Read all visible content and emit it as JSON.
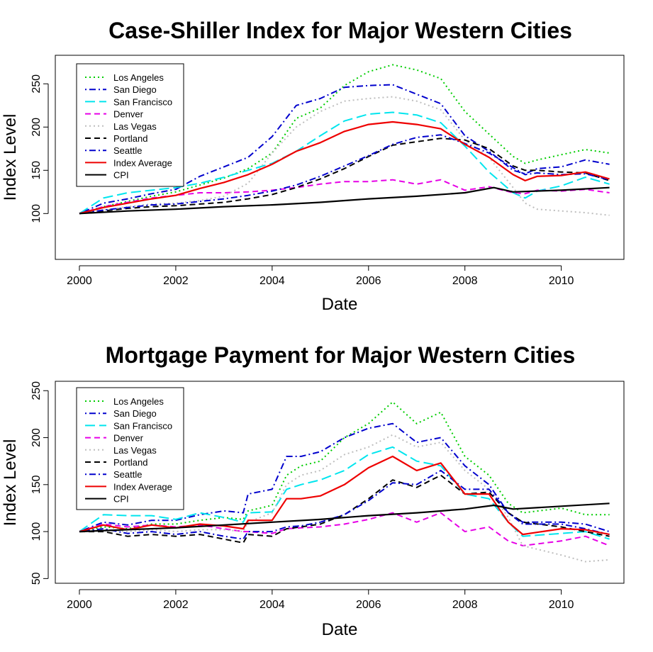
{
  "chart_data": [
    {
      "type": "line",
      "title": "Case-Shiller Index for Major Western Cities",
      "xlabel": "Date",
      "ylabel": "Index Level",
      "xlim": [
        1999.5,
        2011.3
      ],
      "ylim": [
        47,
        283
      ],
      "xticks": [
        2000,
        2002,
        2004,
        2006,
        2008,
        2010
      ],
      "yticks": [
        100,
        150,
        200,
        250
      ],
      "legend_position": "top-left",
      "series": [
        {
          "name": "Los Angeles",
          "color": "#00CD00",
          "dash": "dotted",
          "x": [
            2000,
            2000.5,
            2001,
            2001.5,
            2002,
            2002.5,
            2003,
            2003.5,
            2004,
            2004.5,
            2005,
            2005.5,
            2006,
            2006.5,
            2007,
            2007.5,
            2008,
            2008.5,
            2009,
            2009.25,
            2009.5,
            2010,
            2010.5,
            2011
          ],
          "y": [
            100,
            108,
            114,
            120,
            125,
            133,
            141,
            152,
            170,
            210,
            222,
            248,
            264,
            272,
            266,
            256,
            218,
            192,
            166,
            158,
            162,
            168,
            174,
            170
          ]
        },
        {
          "name": "San Diego",
          "color": "#0000CD",
          "dash": "dashdot",
          "x": [
            2000,
            2000.5,
            2001,
            2001.5,
            2002,
            2002.5,
            2003,
            2003.5,
            2004,
            2004.5,
            2005,
            2005.5,
            2006,
            2006.5,
            2007,
            2007.5,
            2008,
            2008.5,
            2009,
            2009.25,
            2009.5,
            2010,
            2010.5,
            2011
          ],
          "y": [
            100,
            112,
            117,
            123,
            128,
            143,
            154,
            165,
            189,
            225,
            233,
            246,
            248,
            249,
            238,
            227,
            190,
            172,
            150,
            146,
            152,
            154,
            162,
            157
          ]
        },
        {
          "name": "San Francisco",
          "color": "#00E5EE",
          "dash": "longdash",
          "x": [
            2000,
            2000.5,
            2001,
            2001.5,
            2002,
            2002.5,
            2003,
            2003.5,
            2004,
            2004.5,
            2005,
            2005.5,
            2006,
            2006.5,
            2007,
            2007.5,
            2008,
            2008.5,
            2009,
            2009.25,
            2009.5,
            2010,
            2010.5,
            2011
          ],
          "y": [
            100,
            118,
            124,
            127,
            130,
            135,
            142,
            150,
            158,
            172,
            190,
            207,
            215,
            217,
            214,
            205,
            178,
            148,
            124,
            118,
            126,
            132,
            142,
            134
          ]
        },
        {
          "name": "Denver",
          "color": "#E600E6",
          "dash": "dashed",
          "x": [
            2000,
            2000.5,
            2001,
            2001.5,
            2002,
            2002.5,
            2003,
            2003.5,
            2004,
            2004.5,
            2005,
            2005.5,
            2006,
            2006.5,
            2007,
            2007.5,
            2008,
            2008.5,
            2009,
            2009.25,
            2009.5,
            2010,
            2010.5,
            2011
          ],
          "y": [
            100,
            108,
            113,
            118,
            121,
            124,
            124,
            125,
            127,
            130,
            134,
            137,
            137,
            139,
            134,
            139,
            127,
            131,
            124,
            123,
            127,
            126,
            128,
            124
          ]
        },
        {
          "name": "Las Vegas",
          "color": "#BEBEBE",
          "dash": "dotted",
          "x": [
            2000,
            2000.5,
            2001,
            2001.5,
            2002,
            2002.5,
            2003,
            2003.5,
            2004,
            2004.5,
            2005,
            2005.5,
            2006,
            2006.5,
            2007,
            2007.5,
            2008,
            2008.5,
            2009,
            2009.25,
            2009.5,
            2010,
            2010.5,
            2011
          ],
          "y": [
            100,
            104,
            108,
            111,
            112,
            115,
            120,
            135,
            170,
            200,
            218,
            230,
            233,
            235,
            230,
            220,
            185,
            165,
            130,
            112,
            105,
            103,
            101,
            98
          ]
        },
        {
          "name": "Portland",
          "color": "#000000",
          "dash": "dashed",
          "x": [
            2000,
            2000.5,
            2001,
            2001.5,
            2002,
            2002.5,
            2003,
            2003.5,
            2004,
            2004.5,
            2005,
            2005.5,
            2006,
            2006.5,
            2007,
            2007.5,
            2008,
            2008.5,
            2009,
            2009.25,
            2009.5,
            2010,
            2010.5,
            2011
          ],
          "y": [
            100,
            103,
            106,
            108,
            109,
            111,
            113,
            117,
            122,
            130,
            140,
            152,
            166,
            179,
            183,
            187,
            185,
            175,
            155,
            150,
            150,
            148,
            147,
            138
          ]
        },
        {
          "name": "Seattle",
          "color": "#0000CD",
          "dash": "dashdot",
          "x": [
            2000,
            2000.5,
            2001,
            2001.5,
            2002,
            2002.5,
            2003,
            2003.5,
            2004,
            2004.5,
            2005,
            2005.5,
            2006,
            2006.5,
            2007,
            2007.5,
            2008,
            2008.5,
            2009,
            2009.25,
            2009.5,
            2010,
            2010.5,
            2011
          ],
          "y": [
            100,
            104,
            107,
            110,
            111,
            114,
            117,
            121,
            126,
            133,
            143,
            155,
            167,
            180,
            188,
            191,
            181,
            170,
            153,
            145,
            147,
            145,
            146,
            139
          ]
        },
        {
          "name": "Index Average",
          "color": "#EE0000",
          "dash": "solid",
          "x": [
            2000,
            2000.5,
            2001,
            2001.5,
            2002,
            2002.5,
            2003,
            2003.5,
            2004,
            2004.5,
            2005,
            2005.5,
            2006,
            2006.5,
            2007,
            2007.5,
            2008,
            2008.5,
            2009,
            2009.25,
            2009.5,
            2010,
            2010.5,
            2011
          ],
          "y": [
            100,
            107,
            112,
            117,
            121,
            129,
            136,
            145,
            157,
            172,
            182,
            195,
            203,
            206,
            203,
            198,
            180,
            165,
            145,
            138,
            143,
            144,
            148,
            140
          ]
        },
        {
          "name": "CPI",
          "color": "#000000",
          "dash": "solid",
          "x": [
            2000,
            2001,
            2002,
            2003,
            2004,
            2005,
            2006,
            2007,
            2008,
            2008.6,
            2009,
            2010,
            2011
          ],
          "y": [
            100,
            103,
            105,
            108,
            110,
            113,
            117,
            120,
            124,
            130,
            125,
            127,
            130
          ]
        }
      ]
    },
    {
      "type": "line",
      "title": "Mortgage Payment for Major Western Cities",
      "xlabel": "Date",
      "ylabel": "Index Level",
      "xlim": [
        1999.5,
        2011.3
      ],
      "ylim": [
        45,
        260
      ],
      "xticks": [
        2000,
        2002,
        2004,
        2006,
        2008,
        2010
      ],
      "yticks": [
        50,
        100,
        150,
        200,
        250
      ],
      "legend_position": "top-left",
      "series": [
        {
          "name": "Los Angeles",
          "color": "#00CD00",
          "dash": "dotted",
          "x": [
            2000,
            2000.5,
            2001,
            2001.5,
            2002,
            2002.5,
            2003,
            2003.4,
            2003.5,
            2004,
            2004.3,
            2004.6,
            2005,
            2005.5,
            2006,
            2006.5,
            2007,
            2007.5,
            2008,
            2008.5,
            2008.9,
            2009.2,
            2010,
            2010.5,
            2011
          ],
          "y": [
            100,
            105,
            103,
            108,
            108,
            112,
            115,
            113,
            122,
            128,
            160,
            170,
            175,
            200,
            215,
            238,
            215,
            227,
            180,
            160,
            130,
            120,
            125,
            118,
            118
          ]
        },
        {
          "name": "San Diego",
          "color": "#0000CD",
          "dash": "dashdot",
          "x": [
            2000,
            2000.5,
            2001,
            2001.5,
            2002,
            2002.5,
            2003,
            2003.4,
            2003.5,
            2004,
            2004.3,
            2004.6,
            2005,
            2005.5,
            2006,
            2006.5,
            2007,
            2007.5,
            2008,
            2008.5,
            2008.9,
            2009.2,
            2010,
            2010.5,
            2011
          ],
          "y": [
            100,
            110,
            107,
            112,
            112,
            118,
            122,
            120,
            140,
            145,
            180,
            180,
            185,
            200,
            210,
            215,
            195,
            200,
            170,
            150,
            120,
            110,
            110,
            108,
            100
          ]
        },
        {
          "name": "San Francisco",
          "color": "#00E5EE",
          "dash": "longdash",
          "x": [
            2000,
            2000.5,
            2001,
            2001.5,
            2002,
            2002.5,
            2003,
            2003.4,
            2003.5,
            2004,
            2004.3,
            2004.6,
            2005,
            2005.5,
            2006,
            2006.5,
            2007,
            2007.5,
            2008,
            2008.5,
            2008.9,
            2009.2,
            2010,
            2010.5,
            2011
          ],
          "y": [
            100,
            118,
            117,
            117,
            113,
            120,
            115,
            110,
            120,
            121,
            145,
            150,
            155,
            165,
            182,
            190,
            175,
            170,
            140,
            135,
            110,
            95,
            98,
            100,
            92
          ]
        },
        {
          "name": "Denver",
          "color": "#E600E6",
          "dash": "dashed",
          "x": [
            2000,
            2000.5,
            2001,
            2001.5,
            2002,
            2002.5,
            2003,
            2003.4,
            2003.5,
            2004,
            2004.3,
            2004.6,
            2005,
            2005.5,
            2006,
            2006.5,
            2007,
            2007.5,
            2008,
            2008.5,
            2008.9,
            2009.2,
            2010,
            2010.5,
            2011
          ],
          "y": [
            100,
            108,
            105,
            107,
            105,
            107,
            103,
            100,
            100,
            98,
            103,
            104,
            105,
            108,
            113,
            120,
            110,
            120,
            100,
            105,
            90,
            85,
            90,
            95,
            85
          ]
        },
        {
          "name": "Las Vegas",
          "color": "#BEBEBE",
          "dash": "dotted",
          "x": [
            2000,
            2000.5,
            2001,
            2001.5,
            2002,
            2002.5,
            2003,
            2003.4,
            2003.5,
            2004,
            2004.3,
            2004.6,
            2005,
            2005.5,
            2006,
            2006.5,
            2007,
            2007.5,
            2008,
            2008.5,
            2008.9,
            2009.2,
            2010,
            2010.5,
            2011
          ],
          "y": [
            100,
            102,
            100,
            102,
            100,
            102,
            102,
            100,
            110,
            120,
            150,
            160,
            165,
            182,
            190,
            203,
            190,
            195,
            165,
            145,
            115,
            85,
            75,
            68,
            70
          ]
        },
        {
          "name": "Portland",
          "color": "#000000",
          "dash": "dashed",
          "x": [
            2000,
            2000.5,
            2001,
            2001.5,
            2002,
            2002.5,
            2003,
            2003.4,
            2003.5,
            2004,
            2004.3,
            2004.6,
            2005,
            2005.5,
            2006,
            2006.5,
            2007,
            2007.5,
            2008,
            2008.5,
            2008.9,
            2009.2,
            2010,
            2010.5,
            2011
          ],
          "y": [
            100,
            100,
            95,
            97,
            95,
            97,
            92,
            88,
            97,
            95,
            103,
            105,
            108,
            118,
            135,
            155,
            147,
            160,
            140,
            142,
            120,
            110,
            105,
            100,
            95
          ]
        },
        {
          "name": "Seattle",
          "color": "#0000CD",
          "dash": "dashdot",
          "x": [
            2000,
            2000.5,
            2001,
            2001.5,
            2002,
            2002.5,
            2003,
            2003.4,
            2003.5,
            2004,
            2004.3,
            2004.6,
            2005,
            2005.5,
            2006,
            2006.5,
            2007,
            2007.5,
            2008,
            2008.5,
            2008.9,
            2009.2,
            2010,
            2010.5,
            2011
          ],
          "y": [
            100,
            103,
            98,
            100,
            97,
            100,
            95,
            92,
            100,
            100,
            105,
            106,
            110,
            118,
            133,
            152,
            150,
            165,
            145,
            145,
            120,
            108,
            108,
            103,
            97
          ]
        },
        {
          "name": "Index Average",
          "color": "#EE0000",
          "dash": "solid",
          "x": [
            2000,
            2000.5,
            2001,
            2001.5,
            2002,
            2002.5,
            2003,
            2003.4,
            2003.5,
            2004,
            2004.3,
            2004.6,
            2005,
            2005.5,
            2006,
            2006.5,
            2007,
            2007.5,
            2008,
            2008.5,
            2008.9,
            2009.2,
            2010,
            2010.5,
            2011
          ],
          "y": [
            100,
            107,
            102,
            107,
            104,
            108,
            106,
            103,
            112,
            112,
            135,
            135,
            138,
            150,
            168,
            180,
            165,
            173,
            140,
            140,
            110,
            97,
            103,
            102,
            97
          ]
        },
        {
          "name": "CPI",
          "color": "#000000",
          "dash": "solid",
          "x": [
            2000,
            2001,
            2002,
            2003,
            2004,
            2005,
            2006,
            2007,
            2008,
            2008.6,
            2009,
            2010,
            2011
          ],
          "y": [
            100,
            102,
            104,
            107,
            110,
            113,
            117,
            120,
            124,
            128,
            124,
            127,
            130
          ]
        }
      ]
    }
  ]
}
